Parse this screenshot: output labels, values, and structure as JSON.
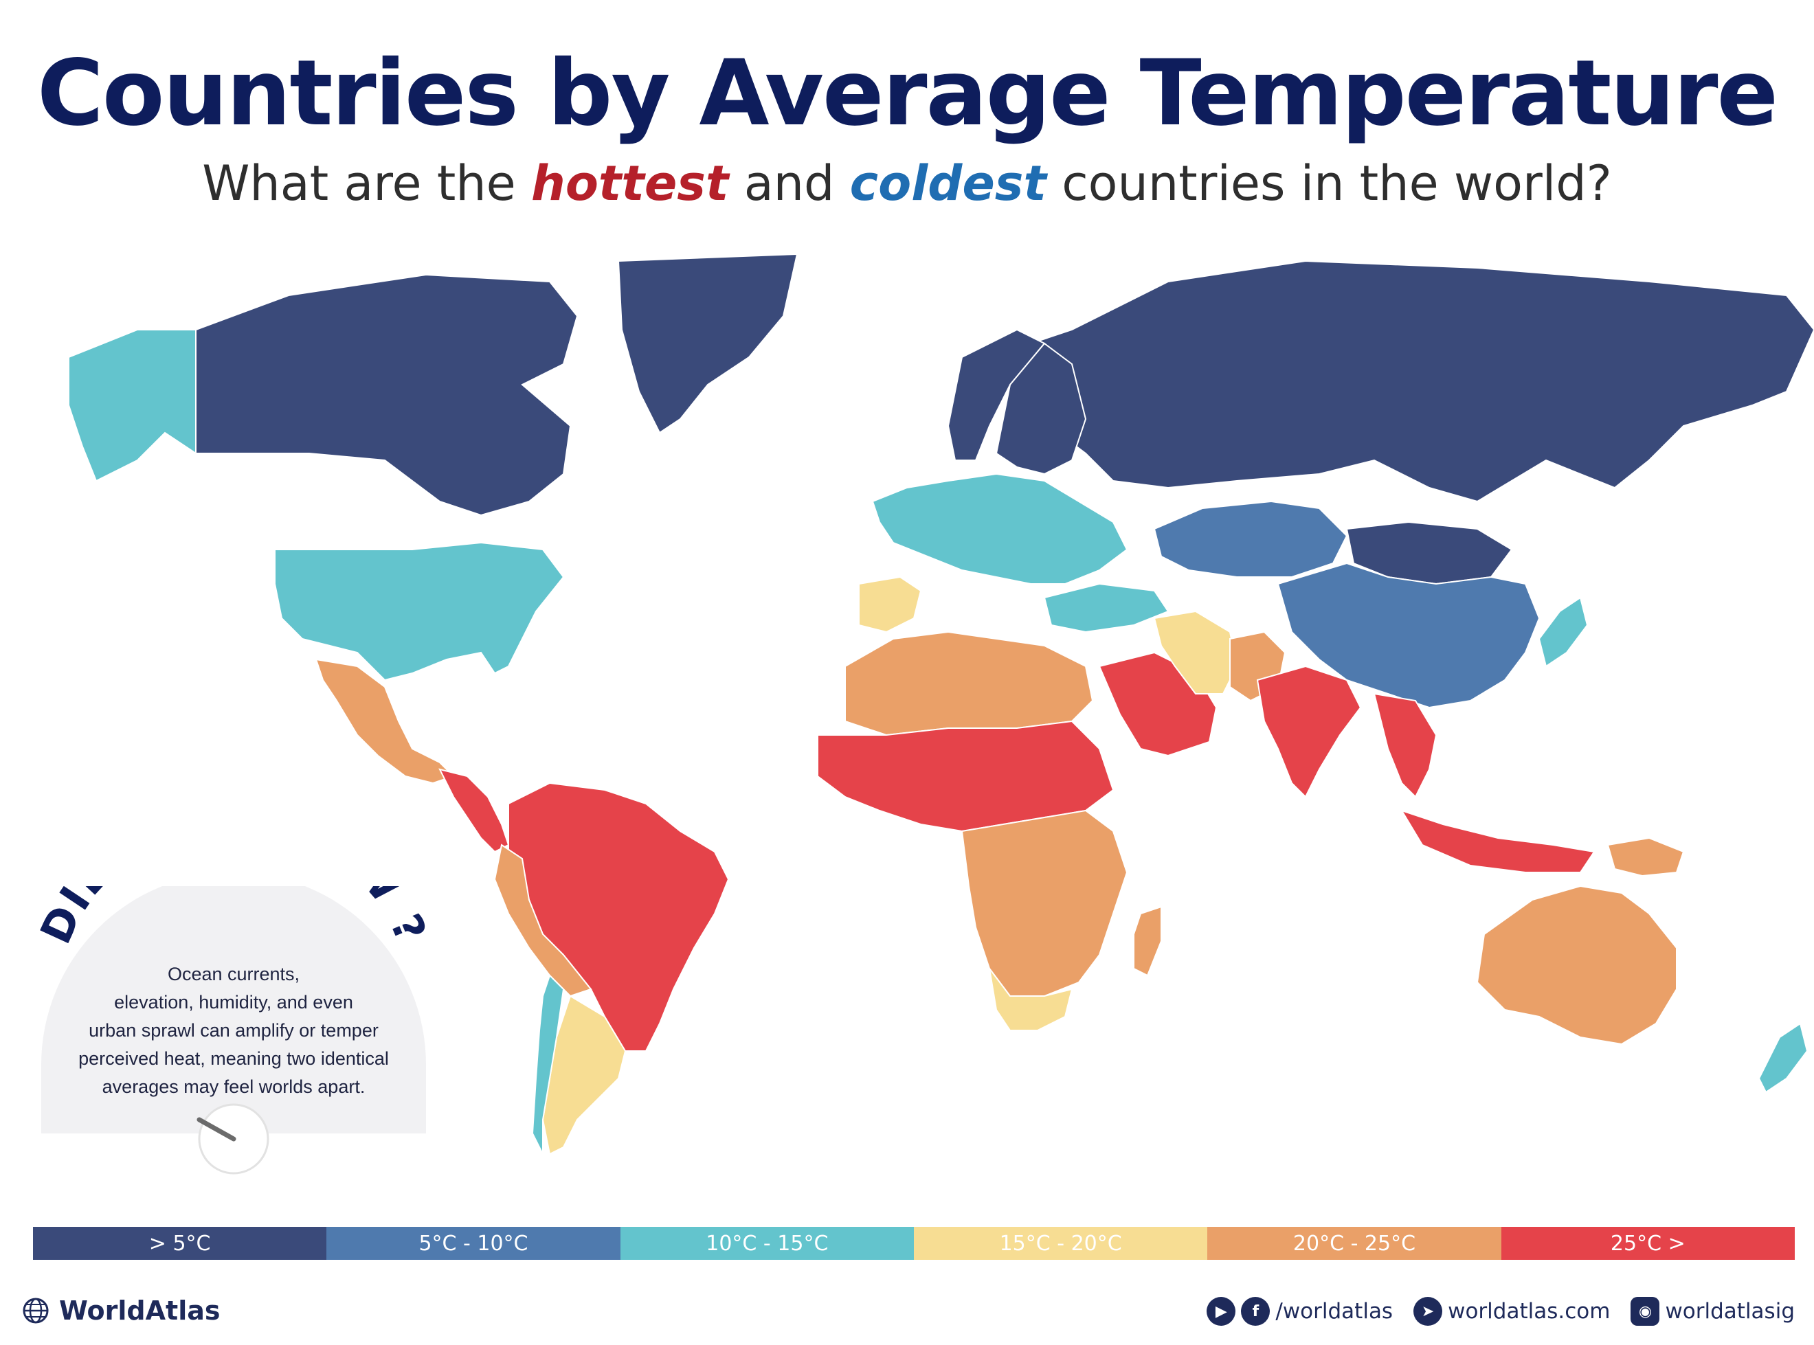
{
  "title": "Countries by Average Temperature",
  "subtitle": {
    "prefix": "What are the ",
    "hot": "hottest",
    "middle": " and ",
    "cold": "coldest",
    "suffix": " countries in the world?"
  },
  "legend": [
    {
      "label": ">  5°C",
      "color": "#3a4a7a"
    },
    {
      "label": "5°C - 10°C",
      "color": "#4f7aae"
    },
    {
      "label": "10°C - 15°C",
      "color": "#63c4cd"
    },
    {
      "label": "15°C - 20°C",
      "color": "#f7dd93"
    },
    {
      "label": "20°C - 25°C",
      "color": "#eaa068"
    },
    {
      "label": "25°C >",
      "color": "#e5434a"
    }
  ],
  "did_you_know": {
    "heading": "DID YOU KNOW ?",
    "lines": [
      "Ocean currents,",
      "elevation, humidity, and even",
      "urban sprawl can amplify or temper",
      "perceived heat, meaning two identical",
      "averages may feel worlds apart."
    ]
  },
  "footer": {
    "brand": "WorldAtlas",
    "social_handle": "/worldatlas",
    "website": "worldatlas.com",
    "instagram": "worldatlasig",
    "icons": [
      "globe-icon",
      "youtube-icon",
      "facebook-icon",
      "cursor-icon",
      "instagram-icon"
    ]
  },
  "map_regions": [
    {
      "name": "Canada",
      "color": "#3a4a7a"
    },
    {
      "name": "Greenland",
      "color": "#3a4a7a"
    },
    {
      "name": "Russia",
      "color": "#3a4a7a"
    },
    {
      "name": "Alaska",
      "color": "#63c4cd"
    },
    {
      "name": "United States",
      "color": "#63c4cd"
    },
    {
      "name": "Mexico",
      "color": "#eaa068"
    },
    {
      "name": "Central America",
      "color": "#e5434a"
    },
    {
      "name": "Northern South America",
      "color": "#e5434a"
    },
    {
      "name": "Peru-Bolivia",
      "color": "#eaa068"
    },
    {
      "name": "Argentina",
      "color": "#f7dd93"
    },
    {
      "name": "Chile",
      "color": "#63c4cd"
    },
    {
      "name": "Norway",
      "color": "#3a4a7a"
    },
    {
      "name": "Sweden-Finland",
      "color": "#3a4a7a"
    },
    {
      "name": "Europe",
      "color": "#63c4cd"
    },
    {
      "name": "Iberia",
      "color": "#f7dd93"
    },
    {
      "name": "North Africa",
      "color": "#eaa068"
    },
    {
      "name": "Sahel",
      "color": "#e5434a"
    },
    {
      "name": "Central-Southern Africa",
      "color": "#eaa068"
    },
    {
      "name": "South Africa",
      "color": "#f7dd93"
    },
    {
      "name": "Madagascar",
      "color": "#eaa068"
    },
    {
      "name": "Arabia",
      "color": "#e5434a"
    },
    {
      "name": "Turkey-Caucasus",
      "color": "#63c4cd"
    },
    {
      "name": "Iran",
      "color": "#f7dd93"
    },
    {
      "name": "Kazakhstan",
      "color": "#4f7aae"
    },
    {
      "name": "Mongolia",
      "color": "#3a4a7a"
    },
    {
      "name": "China",
      "color": "#4f7aae"
    },
    {
      "name": "Pakistan",
      "color": "#eaa068"
    },
    {
      "name": "India",
      "color": "#e5434a"
    },
    {
      "name": "Southeast Asia",
      "color": "#e5434a"
    },
    {
      "name": "Indonesia",
      "color": "#e5434a"
    },
    {
      "name": "Papua New Guinea",
      "color": "#eaa068"
    },
    {
      "name": "Australia",
      "color": "#eaa068"
    },
    {
      "name": "New Zealand",
      "color": "#63c4cd"
    },
    {
      "name": "Japan-Korea",
      "color": "#63c4cd"
    }
  ]
}
